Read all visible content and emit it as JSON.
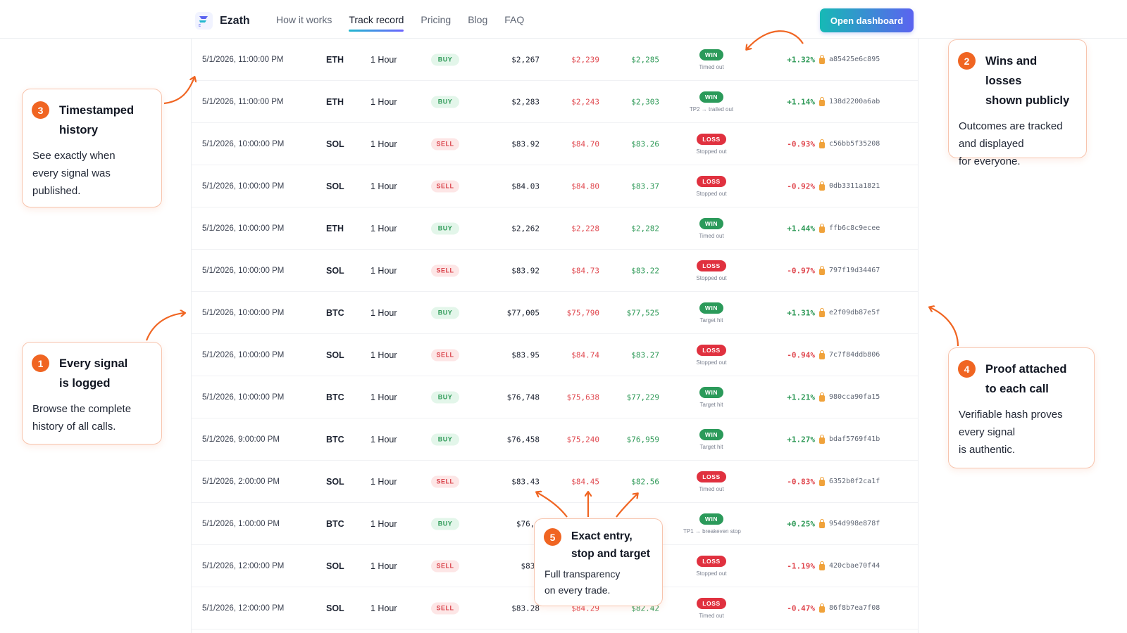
{
  "nav": {
    "brand": "Ezath",
    "logo_letter": "E",
    "links": [
      "How it works",
      "Track record",
      "Pricing",
      "Blog",
      "FAQ"
    ],
    "active_link": "Track record",
    "cta": "Open dashboard"
  },
  "colors": {
    "accent_orange": "#f06522",
    "win": "#2b9a5a",
    "loss": "#e0313f",
    "cta_gradient_start": "#16b9b5",
    "cta_gradient_end": "#5b63f0"
  },
  "signals": [
    {
      "time": "5/1/2026, 11:00:00 PM",
      "asset": "ETH",
      "timeframe": "1 Hour",
      "side": "BUY",
      "entry": "$2,267",
      "stop": "$2,239",
      "target": "$2,285",
      "result": "WIN",
      "note": "Timed out",
      "pnl": "+1.32%",
      "hash": "a85425e6c895"
    },
    {
      "time": "5/1/2026, 11:00:00 PM",
      "asset": "ETH",
      "timeframe": "1 Hour",
      "side": "BUY",
      "entry": "$2,283",
      "stop": "$2,243",
      "target": "$2,303",
      "result": "WIN",
      "note": "TP2 → trailed out",
      "pnl": "+1.14%",
      "hash": "138d2200a6ab"
    },
    {
      "time": "5/1/2026, 10:00:00 PM",
      "asset": "SOL",
      "timeframe": "1 Hour",
      "side": "SELL",
      "entry": "$83.92",
      "stop": "$84.70",
      "target": "$83.26",
      "result": "LOSS",
      "note": "Stopped out",
      "pnl": "-0.93%",
      "hash": "c56bb5f35208"
    },
    {
      "time": "5/1/2026, 10:00:00 PM",
      "asset": "SOL",
      "timeframe": "1 Hour",
      "side": "SELL",
      "entry": "$84.03",
      "stop": "$84.80",
      "target": "$83.37",
      "result": "LOSS",
      "note": "Stopped out",
      "pnl": "-0.92%",
      "hash": "0db3311a1821"
    },
    {
      "time": "5/1/2026, 10:00:00 PM",
      "asset": "ETH",
      "timeframe": "1 Hour",
      "side": "BUY",
      "entry": "$2,262",
      "stop": "$2,228",
      "target": "$2,282",
      "result": "WIN",
      "note": "Timed out",
      "pnl": "+1.44%",
      "hash": "ffb6c8c9ecee"
    },
    {
      "time": "5/1/2026, 10:00:00 PM",
      "asset": "SOL",
      "timeframe": "1 Hour",
      "side": "SELL",
      "entry": "$83.92",
      "stop": "$84.73",
      "target": "$83.22",
      "result": "LOSS",
      "note": "Stopped out",
      "pnl": "-0.97%",
      "hash": "797f19d34467"
    },
    {
      "time": "5/1/2026, 10:00:00 PM",
      "asset": "BTC",
      "timeframe": "1 Hour",
      "side": "BUY",
      "entry": "$77,005",
      "stop": "$75,790",
      "target": "$77,525",
      "result": "WIN",
      "note": "Target hit",
      "pnl": "+1.31%",
      "hash": "e2f09db87e5f"
    },
    {
      "time": "5/1/2026, 10:00:00 PM",
      "asset": "SOL",
      "timeframe": "1 Hour",
      "side": "SELL",
      "entry": "$83.95",
      "stop": "$84.74",
      "target": "$83.27",
      "result": "LOSS",
      "note": "Stopped out",
      "pnl": "-0.94%",
      "hash": "7c7f84ddb806"
    },
    {
      "time": "5/1/2026, 10:00:00 PM",
      "asset": "BTC",
      "timeframe": "1 Hour",
      "side": "BUY",
      "entry": "$76,748",
      "stop": "$75,638",
      "target": "$77,229",
      "result": "WIN",
      "note": "Target hit",
      "pnl": "+1.21%",
      "hash": "980cca90fa15"
    },
    {
      "time": "5/1/2026, 9:00:00 PM",
      "asset": "BTC",
      "timeframe": "1 Hour",
      "side": "BUY",
      "entry": "$76,458",
      "stop": "$75,240",
      "target": "$76,959",
      "result": "WIN",
      "note": "Target hit",
      "pnl": "+1.27%",
      "hash": "bdaf5769f41b"
    },
    {
      "time": "5/1/2026, 2:00:00 PM",
      "asset": "SOL",
      "timeframe": "1 Hour",
      "side": "SELL",
      "entry": "$83.43",
      "stop": "$84.45",
      "target": "$82.56",
      "result": "LOSS",
      "note": "Timed out",
      "pnl": "-0.83%",
      "hash": "6352b0f2ca1f"
    },
    {
      "time": "5/1/2026, 1:00:00 PM",
      "asset": "BTC",
      "timeframe": "1 Hour",
      "side": "BUY",
      "entry": "$76,6",
      "stop": "",
      "target": "",
      "result": "WIN",
      "note": "TP1 → breakeven stop",
      "pnl": "+0.25%",
      "hash": "954d998e878f"
    },
    {
      "time": "5/1/2026, 12:00:00 PM",
      "asset": "SOL",
      "timeframe": "1 Hour",
      "side": "SELL",
      "entry": "$83.",
      "stop": "",
      "target": "",
      "result": "LOSS",
      "note": "Stopped out",
      "pnl": "-1.19%",
      "hash": "420cbae70f44"
    },
    {
      "time": "5/1/2026, 12:00:00 PM",
      "asset": "SOL",
      "timeframe": "1 Hour",
      "side": "SELL",
      "entry": "$83.28",
      "stop": "$84.29",
      "target": "$82.42",
      "result": "LOSS",
      "note": "Timed out",
      "pnl": "-0.47%",
      "hash": "86f8b7ea7f08"
    }
  ],
  "callouts": {
    "c1": {
      "num": "1",
      "title_line1": "Every signal",
      "title_line2": "is logged",
      "body_line1": "Browse the complete",
      "body_line2": "history of all calls."
    },
    "c2": {
      "num": "2",
      "title_line1": "Wins and losses",
      "title_line2": "shown publicly",
      "body_line1": "Outcomes are tracked",
      "body_line2": "and displayed",
      "body_line3": "for everyone."
    },
    "c3": {
      "num": "3",
      "title_line1": "Timestamped",
      "title_line2": "history",
      "body_line1": "See exactly when",
      "body_line2": "every signal was",
      "body_line3": "published."
    },
    "c4": {
      "num": "4",
      "title_line1": "Proof attached",
      "title_line2": "to each call",
      "body_line1": "Verifiable hash proves",
      "body_line2": "every signal",
      "body_line3": "is authentic."
    },
    "c5": {
      "num": "5",
      "title_line1": "Exact entry,",
      "title_line2": "stop and target",
      "body_line1": "Full transparency",
      "body_line2": "on every trade."
    }
  }
}
